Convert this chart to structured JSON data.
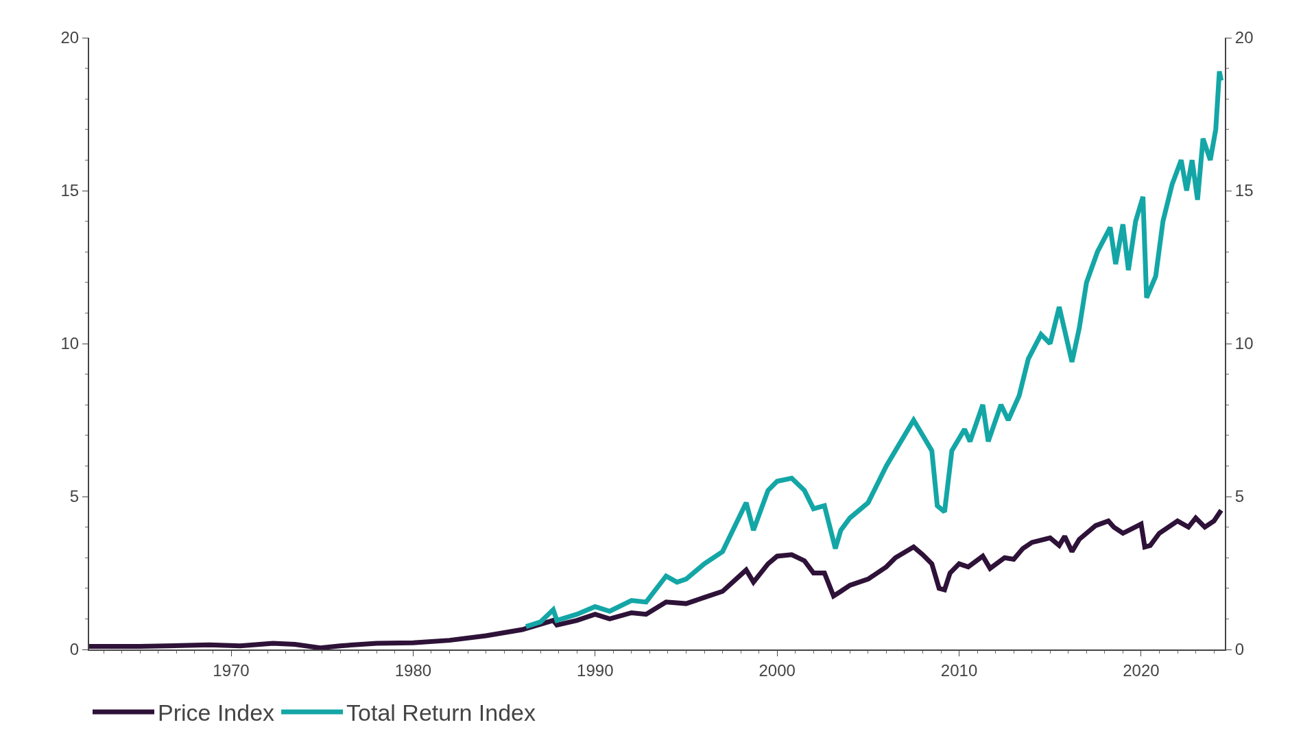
{
  "chart_data": {
    "type": "line",
    "xlim": [
      1962.2,
      2024.6
    ],
    "xticks": [
      1970,
      1980,
      1990,
      2000,
      2010,
      2020
    ],
    "ylim": [
      0,
      20
    ],
    "yticks": [
      0,
      5,
      10,
      15,
      20
    ],
    "y2lim": [
      0,
      20
    ],
    "y2ticks": [
      0,
      5,
      10,
      15,
      20
    ],
    "grid": false,
    "legend": "bottom",
    "marker": "none",
    "line_style": "solid",
    "series": [
      {
        "name": "Price Index",
        "color": "#2e1238",
        "x": [
          1962.2,
          1965,
          1968.8,
          1970.5,
          1972.3,
          1973.5,
          1974.9,
          1976,
          1978,
          1980,
          1982,
          1984,
          1986,
          1987.7,
          1987.9,
          1989,
          1990,
          1990.8,
          1992,
          1992.8,
          1993.9,
          1995,
          1996,
          1997,
          1998.3,
          1998.7,
          1999.5,
          2000,
          2000.8,
          2001.5,
          2002,
          2002.6,
          2003.1,
          2003.5,
          2004,
          2005,
          2006,
          2006.5,
          2007.5,
          2008,
          2008.5,
          2008.9,
          2009.2,
          2009.5,
          2010,
          2010.5,
          2011.3,
          2011.7,
          2012.5,
          2013,
          2013.5,
          2014,
          2015,
          2015.5,
          2015.8,
          2016.2,
          2016.6,
          2017.5,
          2018.2,
          2018.5,
          2019,
          2019.5,
          2020,
          2020.2,
          2020.5,
          2021,
          2022,
          2022.6,
          2023,
          2023.5,
          2024,
          2024.4
        ],
        "values": [
          0.1,
          0.1,
          0.15,
          0.12,
          0.2,
          0.17,
          0.05,
          0.12,
          0.2,
          0.22,
          0.3,
          0.45,
          0.65,
          0.95,
          0.8,
          0.95,
          1.15,
          1.0,
          1.2,
          1.15,
          1.55,
          1.5,
          1.7,
          1.9,
          2.6,
          2.2,
          2.8,
          3.05,
          3.1,
          2.9,
          2.5,
          2.5,
          1.75,
          1.9,
          2.1,
          2.3,
          2.7,
          3.0,
          3.35,
          3.1,
          2.8,
          2.0,
          1.95,
          2.5,
          2.8,
          2.7,
          3.05,
          2.65,
          3.0,
          2.95,
          3.3,
          3.5,
          3.65,
          3.4,
          3.7,
          3.2,
          3.6,
          4.05,
          4.2,
          4.0,
          3.8,
          3.95,
          4.1,
          3.35,
          3.4,
          3.8,
          4.2,
          4.0,
          4.3,
          4.0,
          4.2,
          4.55
        ]
      },
      {
        "name": "Total Return Index",
        "color": "#14a6a6",
        "x": [
          1986.2,
          1987,
          1987.7,
          1987.9,
          1989,
          1990,
          1990.8,
          1992,
          1992.8,
          1993.9,
          1994.5,
          1995,
          1996,
          1997,
          1998.3,
          1998.7,
          1999.5,
          2000,
          2000.8,
          2001.5,
          2002,
          2002.6,
          2003.2,
          2003.5,
          2004,
          2005,
          2006,
          2006.6,
          2007.5,
          2008,
          2008.5,
          2008.8,
          2009.2,
          2009.6,
          2010.3,
          2010.6,
          2011.3,
          2011.6,
          2012.3,
          2012.7,
          2013.3,
          2013.8,
          2014.5,
          2015,
          2015.5,
          2016.2,
          2016.6,
          2017,
          2017.6,
          2018.3,
          2018.6,
          2019,
          2019.3,
          2019.7,
          2020.1,
          2020.3,
          2020.8,
          2021.2,
          2021.7,
          2022.2,
          2022.5,
          2022.8,
          2023.1,
          2023.4,
          2023.8,
          2024.1,
          2024.3,
          2024.4
        ],
        "values": [
          0.75,
          0.9,
          1.3,
          0.95,
          1.15,
          1.4,
          1.25,
          1.6,
          1.55,
          2.4,
          2.2,
          2.3,
          2.8,
          3.2,
          4.8,
          3.9,
          5.2,
          5.5,
          5.6,
          5.2,
          4.6,
          4.7,
          3.3,
          3.9,
          4.3,
          4.8,
          6.0,
          6.6,
          7.5,
          7.0,
          6.5,
          4.7,
          4.5,
          6.5,
          7.2,
          6.8,
          8.0,
          6.8,
          8.0,
          7.5,
          8.3,
          9.5,
          10.3,
          10.0,
          11.2,
          9.4,
          10.5,
          12.0,
          13.0,
          13.8,
          12.6,
          13.9,
          12.4,
          14.0,
          14.8,
          11.5,
          12.2,
          14.0,
          15.2,
          16.0,
          15.0,
          16.0,
          14.7,
          16.7,
          16.0,
          17.0,
          18.9,
          18.6
        ]
      }
    ]
  }
}
